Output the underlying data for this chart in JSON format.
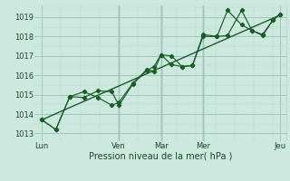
{
  "background_color": "#cce8df",
  "grid_major_color": "#a0c8bc",
  "grid_minor_color": "#b8d8d0",
  "line_color": "#1a5c28",
  "marker_color": "#1a5c28",
  "xlabel": "Pression niveau de la mer( hPa )",
  "ylim": [
    1012.6,
    1019.6
  ],
  "yticks": [
    1013,
    1014,
    1015,
    1016,
    1017,
    1018,
    1019
  ],
  "xlim": [
    0,
    144
  ],
  "xtick_positions": [
    4,
    48,
    72,
    96,
    140
  ],
  "xtick_labels": [
    "Lun",
    "Ven",
    "Mar",
    "Mer",
    "Jeu"
  ],
  "vline_positions": [
    48,
    72,
    96,
    144
  ],
  "series1_x": [
    4,
    12,
    20,
    28,
    36,
    44,
    48,
    56,
    64,
    68,
    72,
    78,
    84,
    90,
    96,
    104,
    110,
    118,
    124,
    130,
    136,
    140
  ],
  "series1_y": [
    1013.7,
    1013.2,
    1014.9,
    1014.85,
    1015.2,
    1015.15,
    1014.45,
    1015.55,
    1016.25,
    1016.45,
    1017.05,
    1016.55,
    1016.45,
    1016.5,
    1018.0,
    1018.0,
    1018.05,
    1019.35,
    1018.3,
    1018.05,
    1018.85,
    1019.15
  ],
  "series2_x": [
    4,
    12,
    20,
    28,
    36,
    44,
    48,
    56,
    64,
    68,
    72,
    78,
    84,
    90,
    96,
    104,
    110,
    118,
    124,
    130,
    136,
    140
  ],
  "series2_y": [
    1013.7,
    1013.2,
    1014.9,
    1015.15,
    1014.85,
    1014.45,
    1014.6,
    1015.6,
    1016.3,
    1016.2,
    1017.05,
    1017.0,
    1016.45,
    1016.5,
    1018.1,
    1018.0,
    1019.35,
    1018.6,
    1018.3,
    1018.1,
    1018.85,
    1019.15
  ],
  "trend_x": [
    4,
    140
  ],
  "trend_y": [
    1013.7,
    1019.1
  ]
}
